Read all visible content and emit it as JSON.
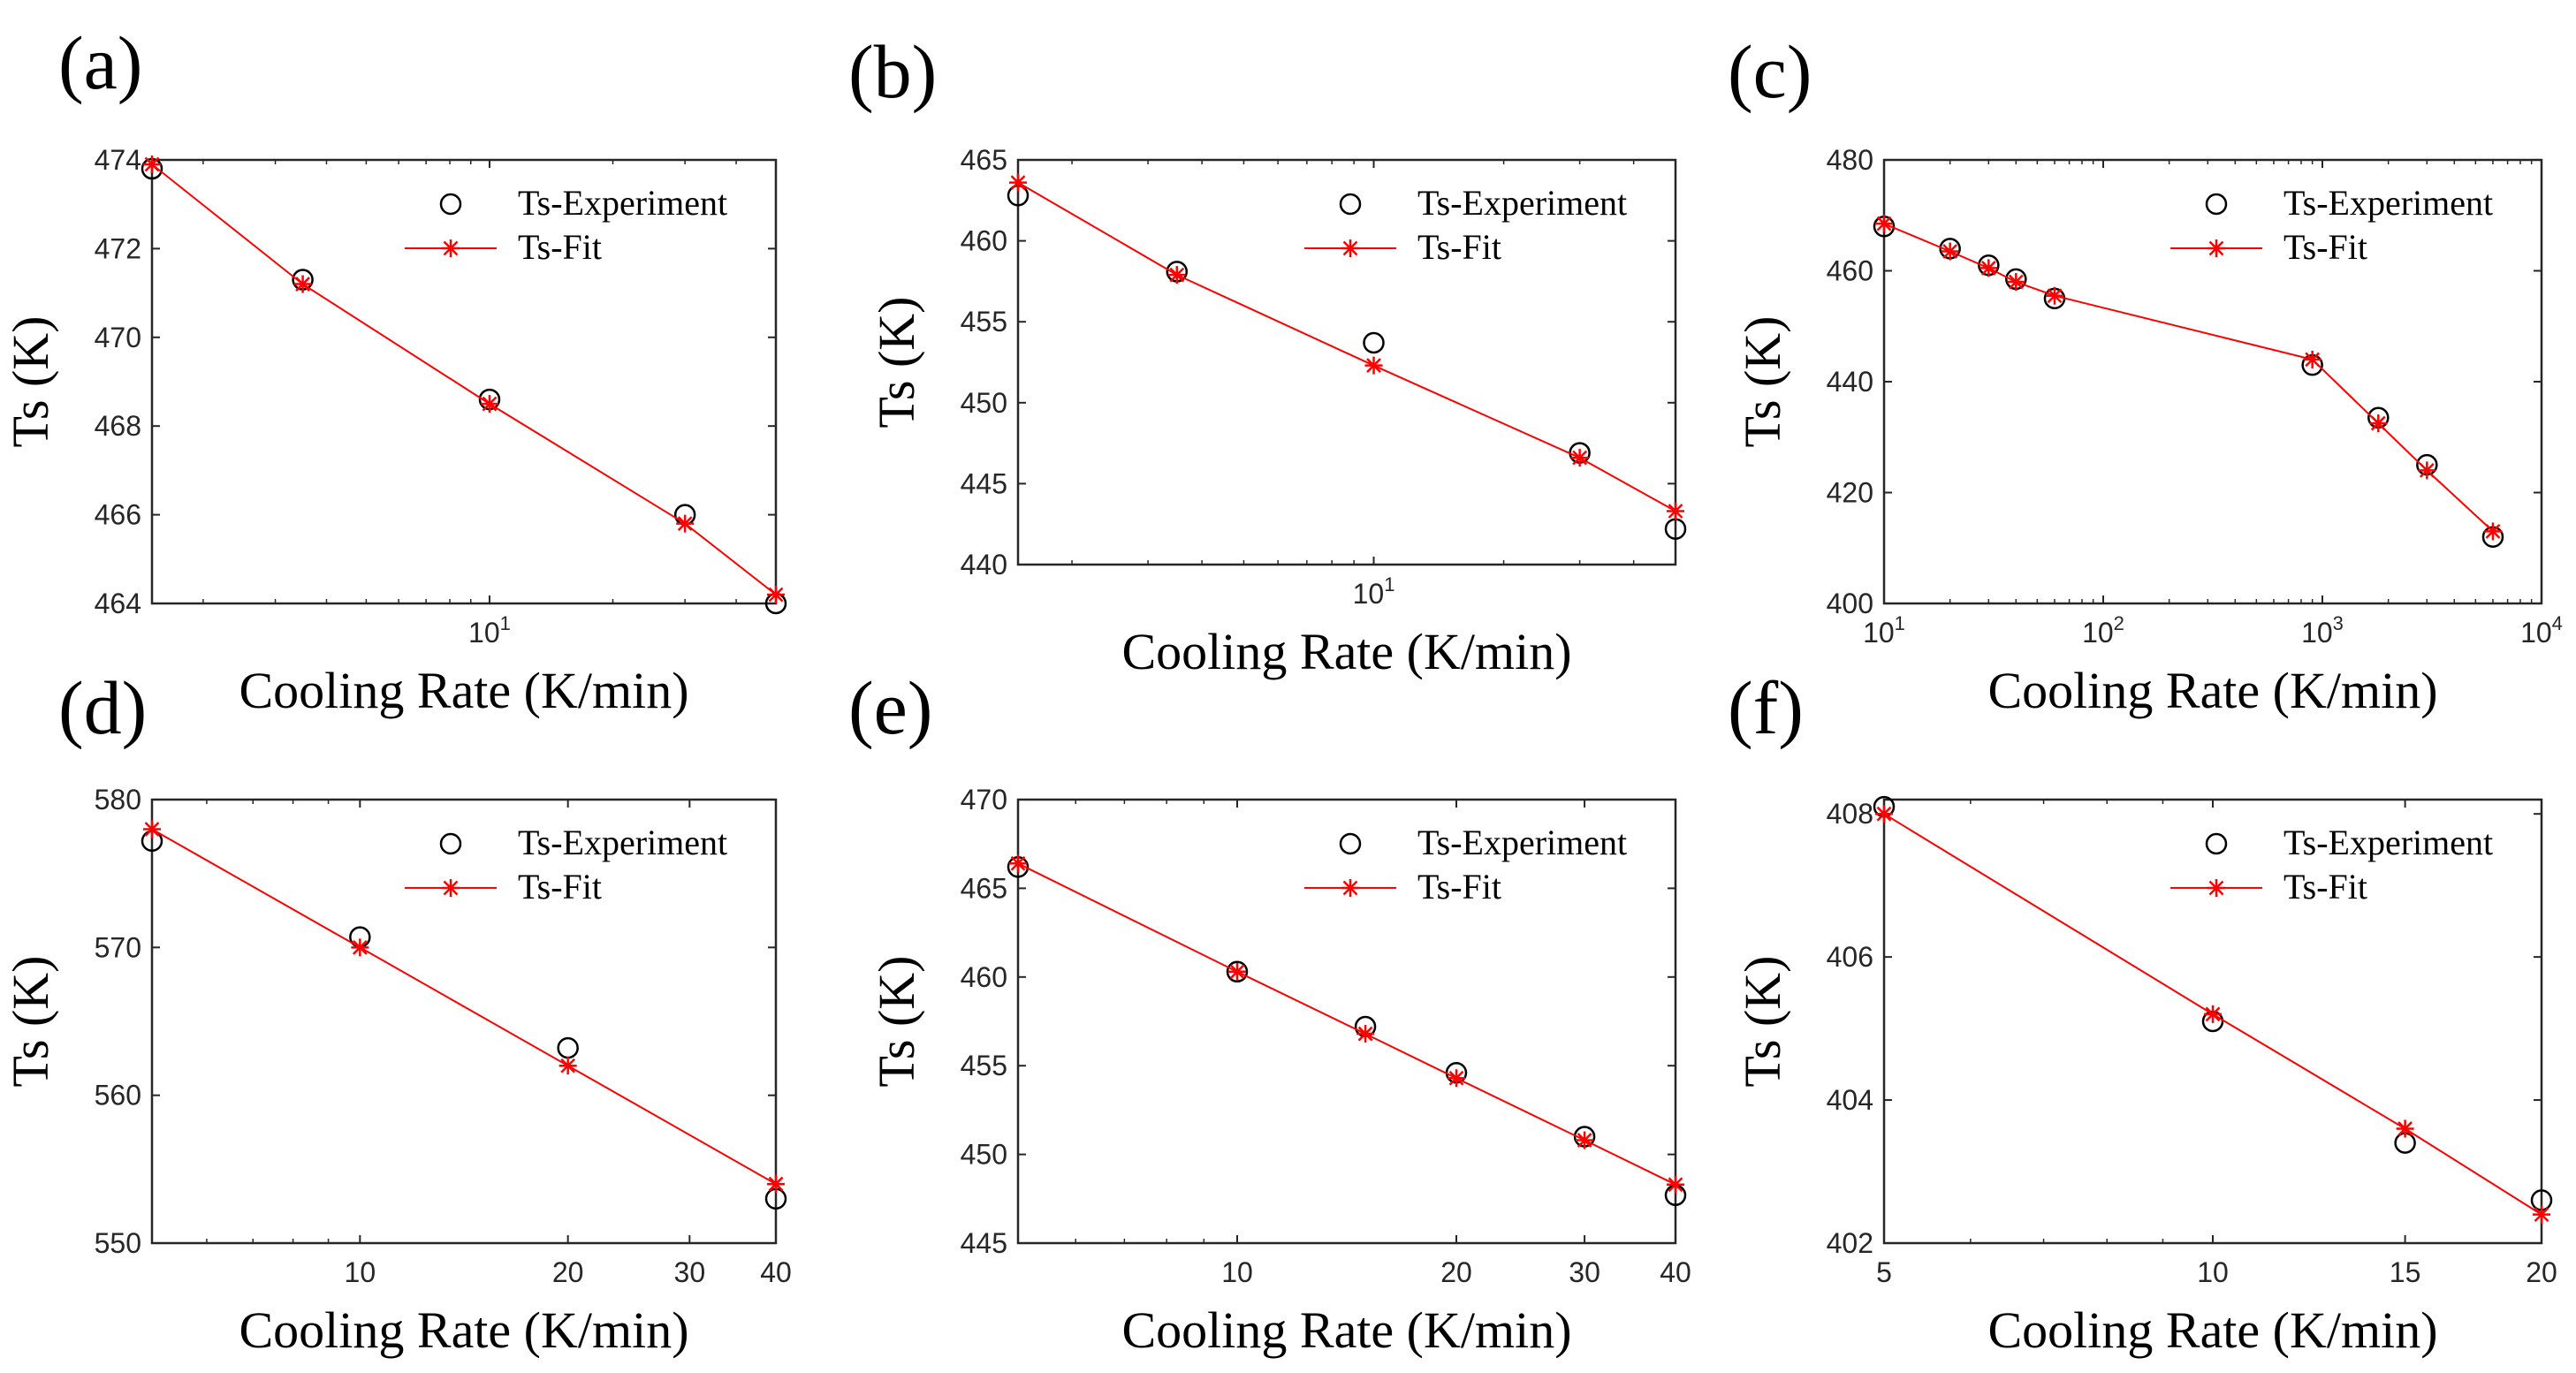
{
  "chart_data": [
    {
      "type": "scatter",
      "panel_label": "(a)",
      "xlabel": "Cooling Rate (K/min)",
      "ylabel": "Ts (K)",
      "xscale": "log",
      "xlim": [
        1.5,
        50
      ],
      "ylim": [
        464,
        474
      ],
      "xticks": [
        {
          "value": 10,
          "base": "10",
          "exp": "1"
        }
      ],
      "yticks": [
        464,
        466,
        468,
        470,
        472,
        474
      ],
      "legend": {
        "placement": "top-right"
      },
      "series": [
        {
          "name": "Ts-Experiment",
          "marker": "circle",
          "color": "#000000",
          "line": false,
          "x": [
            1.5,
            3.5,
            10,
            30,
            50
          ],
          "y": [
            473.8,
            471.3,
            468.6,
            466.0,
            464.0
          ]
        },
        {
          "name": "Ts-Fit",
          "marker": "asterisk",
          "color": "#ff0000",
          "line": true,
          "x": [
            1.5,
            3.5,
            10,
            30,
            50
          ],
          "y": [
            473.9,
            471.2,
            468.5,
            465.8,
            464.2
          ]
        }
      ]
    },
    {
      "type": "scatter",
      "panel_label": "(b)",
      "xlabel": "Cooling Rate (K/min)",
      "ylabel": "Ts (K)",
      "xscale": "log",
      "xlim": [
        1.5,
        50
      ],
      "ylim": [
        440,
        465
      ],
      "xticks": [
        {
          "value": 10,
          "base": "10",
          "exp": "1"
        }
      ],
      "yticks": [
        440,
        445,
        450,
        455,
        460,
        465
      ],
      "legend": {
        "placement": "top-right"
      },
      "series": [
        {
          "name": "Ts-Experiment",
          "marker": "circle",
          "color": "#000000",
          "line": false,
          "x": [
            1.5,
            3.5,
            10,
            30,
            50
          ],
          "y": [
            462.8,
            458.1,
            453.7,
            446.9,
            442.2
          ]
        },
        {
          "name": "Ts-Fit",
          "marker": "asterisk",
          "color": "#ff0000",
          "line": true,
          "x": [
            1.5,
            3.5,
            10,
            30,
            50
          ],
          "y": [
            463.6,
            457.9,
            452.3,
            446.6,
            443.3
          ]
        }
      ]
    },
    {
      "type": "scatter",
      "panel_label": "(c)",
      "xlabel": "Cooling Rate (K/min)",
      "ylabel": "Ts (K)",
      "xscale": "log",
      "xlim": [
        10,
        10000
      ],
      "ylim": [
        400,
        480
      ],
      "xticks": [
        {
          "value": 10,
          "base": "10",
          "exp": "1"
        },
        {
          "value": 100,
          "base": "10",
          "exp": "2"
        },
        {
          "value": 1000,
          "base": "10",
          "exp": "3"
        },
        {
          "value": 10000,
          "base": "10",
          "exp": "4"
        }
      ],
      "yticks": [
        400,
        420,
        440,
        460,
        480
      ],
      "legend": {
        "placement": "top-right"
      },
      "series": [
        {
          "name": "Ts-Experiment",
          "marker": "circle",
          "color": "#000000",
          "line": false,
          "x": [
            10,
            20,
            30,
            40,
            60,
            900,
            1800,
            3000,
            6000
          ],
          "y": [
            468.0,
            464.0,
            461.0,
            458.5,
            455.0,
            443.0,
            433.5,
            425.0,
            412.0
          ]
        },
        {
          "name": "Ts-Fit",
          "marker": "asterisk",
          "color": "#ff0000",
          "line": true,
          "x": [
            10,
            20,
            30,
            40,
            60,
            900,
            1800,
            3000,
            6000
          ],
          "y": [
            468.5,
            463.5,
            460.5,
            458.0,
            455.5,
            444.0,
            432.5,
            424.0,
            413.0
          ]
        }
      ]
    },
    {
      "type": "scatter",
      "panel_label": "(d)",
      "xlabel": "Cooling Rate (K/min)",
      "ylabel": "Ts (K)",
      "xscale": "log",
      "xlim": [
        5,
        40
      ],
      "ylim": [
        550,
        580
      ],
      "xticks": [
        {
          "value": 10,
          "label": "10"
        },
        {
          "value": 20,
          "label": "20"
        },
        {
          "value": 30,
          "label": "30"
        },
        {
          "value": 40,
          "label": "40"
        }
      ],
      "yticks": [
        550,
        560,
        570,
        580
      ],
      "legend": {
        "placement": "top-right"
      },
      "series": [
        {
          "name": "Ts-Experiment",
          "marker": "circle",
          "color": "#000000",
          "line": false,
          "x": [
            5,
            10,
            20,
            40
          ],
          "y": [
            577.2,
            570.7,
            563.2,
            553.0
          ]
        },
        {
          "name": "Ts-Fit",
          "marker": "asterisk",
          "color": "#ff0000",
          "line": true,
          "x": [
            5,
            10,
            20,
            40
          ],
          "y": [
            578.0,
            570.0,
            562.0,
            554.0
          ]
        }
      ]
    },
    {
      "type": "scatter",
      "panel_label": "(e)",
      "xlabel": "Cooling Rate (K/min)",
      "ylabel": "Ts (K)",
      "xscale": "log",
      "xlim": [
        5,
        40
      ],
      "ylim": [
        445,
        470
      ],
      "xticks": [
        {
          "value": 10,
          "label": "10"
        },
        {
          "value": 20,
          "label": "20"
        },
        {
          "value": 30,
          "label": "30"
        },
        {
          "value": 40,
          "label": "40"
        }
      ],
      "yticks": [
        445,
        450,
        455,
        460,
        465,
        470
      ],
      "legend": {
        "placement": "top-right"
      },
      "series": [
        {
          "name": "Ts-Experiment",
          "marker": "circle",
          "color": "#000000",
          "line": false,
          "x": [
            5,
            10,
            15,
            20,
            30,
            40
          ],
          "y": [
            466.2,
            460.3,
            457.2,
            454.6,
            451.0,
            447.7
          ]
        },
        {
          "name": "Ts-Fit",
          "marker": "asterisk",
          "color": "#ff0000",
          "line": true,
          "x": [
            5,
            10,
            15,
            20,
            30,
            40
          ],
          "y": [
            466.4,
            460.3,
            456.8,
            454.3,
            450.8,
            448.3
          ]
        }
      ]
    },
    {
      "type": "scatter",
      "panel_label": "(f)",
      "xlabel": "Cooling Rate (K/min)",
      "ylabel": "Ts (K)",
      "xscale": "log",
      "xlim": [
        5,
        20
      ],
      "ylim": [
        402,
        408.2
      ],
      "xticks": [
        {
          "value": 5,
          "label": "5"
        },
        {
          "value": 10,
          "label": "10"
        },
        {
          "value": 15,
          "label": "15"
        },
        {
          "value": 20,
          "label": "20"
        }
      ],
      "yticks": [
        402,
        404,
        406,
        408
      ],
      "legend": {
        "placement": "top-right"
      },
      "series": [
        {
          "name": "Ts-Experiment",
          "marker": "circle",
          "color": "#000000",
          "line": false,
          "x": [
            5,
            10,
            15,
            20
          ],
          "y": [
            408.1,
            405.1,
            403.4,
            402.6
          ]
        },
        {
          "name": "Ts-Fit",
          "marker": "asterisk",
          "color": "#ff0000",
          "line": true,
          "x": [
            5,
            10,
            15,
            20
          ],
          "y": [
            408.0,
            405.2,
            403.6,
            402.4
          ]
        }
      ]
    }
  ]
}
